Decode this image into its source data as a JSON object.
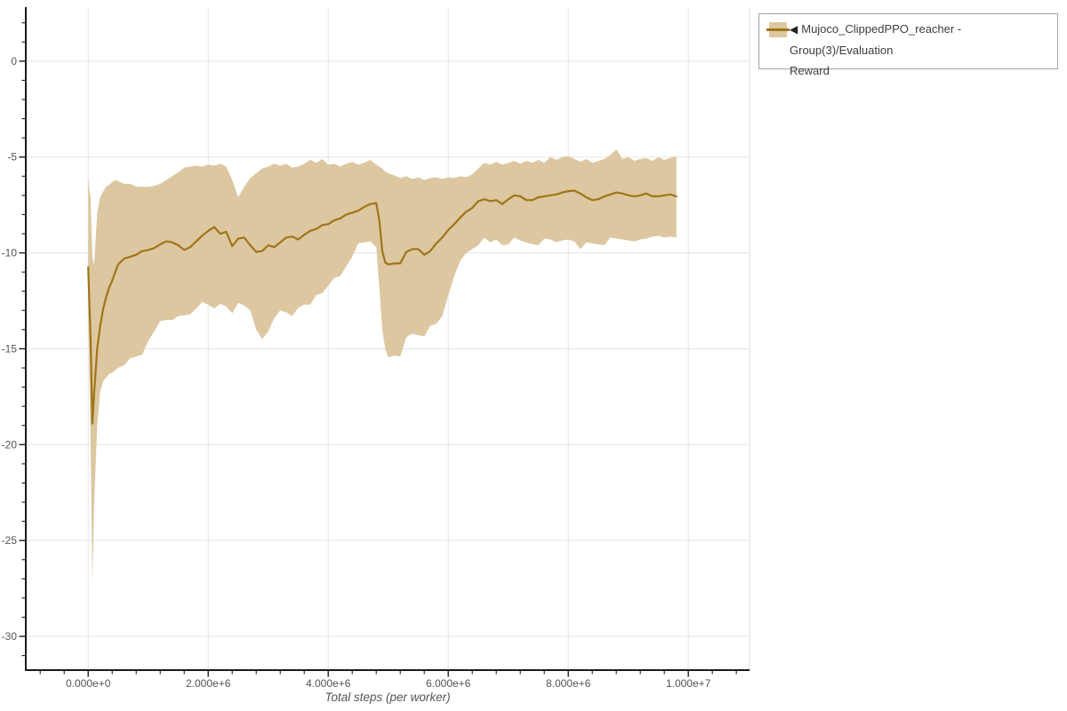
{
  "legend": {
    "items": [
      {
        "collapse_icon": "◀",
        "label": "Mujoco_ClippedPPO_reacher - Group(3)/Evaluation Reward",
        "label_line1": "Mujoco_ClippedPPO_reacher - Group(3)/Evaluation",
        "label_line2": "Reward"
      }
    ]
  },
  "axes": {
    "x": {
      "title": "Total steps (per worker)",
      "tick_values_e6": [
        0,
        2,
        4,
        6,
        8,
        10
      ],
      "tick_labels": [
        "0.000e+0",
        "2.000e+6",
        "4.000e+6",
        "6.000e+6",
        "8.000e+6",
        "1.000e+7"
      ],
      "minor_tick_start_e6": -0.8,
      "minor_tick_end_e6": 10.8,
      "minor_step_e6": 0.4,
      "lim_e6": [
        -1.04,
        11.02
      ]
    },
    "y": {
      "tick_values": [
        0,
        -5,
        -10,
        -15,
        -20,
        -25,
        -30
      ],
      "tick_labels": [
        "0",
        "-5",
        "-10",
        "-15",
        "-20",
        "-25",
        "-30"
      ],
      "minor_tick_start": 2,
      "minor_tick_end": -31,
      "minor_step": 1,
      "lim": [
        -31.76,
        2.82
      ]
    }
  },
  "colors": {
    "band": "#dcc7a0",
    "line": "#9f7519",
    "grid": "#e5e5e5",
    "frame_right": "#e0e0e0",
    "axis": "#1a1a1a",
    "tick_label": "#555555"
  },
  "chart_data": {
    "type": "line",
    "title": "",
    "xlabel": "Total steps (per worker)",
    "ylabel": "",
    "x_unit_steps": 1000000,
    "xlim_e6": [
      -1.04,
      11.02
    ],
    "ylim": [
      -31.76,
      2.82
    ],
    "grid": true,
    "legend_position": "top-right-outside",
    "series": [
      {
        "name": "Mujoco_ClippedPPO_reacher - Group(3)/Evaluation Reward",
        "x_e6": [
          0,
          0.04,
          0.07,
          0.1,
          0.15,
          0.2,
          0.25,
          0.3,
          0.35,
          0.4,
          0.45,
          0.5,
          0.6,
          0.7,
          0.8,
          0.9,
          1.0,
          1.1,
          1.2,
          1.3,
          1.4,
          1.5,
          1.6,
          1.7,
          1.8,
          1.9,
          2.0,
          2.1,
          2.2,
          2.3,
          2.4,
          2.5,
          2.6,
          2.7,
          2.8,
          2.9,
          3.0,
          3.1,
          3.2,
          3.3,
          3.4,
          3.5,
          3.6,
          3.7,
          3.8,
          3.9,
          4.0,
          4.1,
          4.2,
          4.3,
          4.4,
          4.5,
          4.6,
          4.7,
          4.8,
          4.85,
          4.9,
          4.95,
          5.0,
          5.1,
          5.2,
          5.3,
          5.4,
          5.5,
          5.6,
          5.7,
          5.8,
          5.9,
          6.0,
          6.1,
          6.2,
          6.3,
          6.4,
          6.5,
          6.6,
          6.7,
          6.8,
          6.9,
          7.0,
          7.1,
          7.2,
          7.3,
          7.4,
          7.5,
          7.6,
          7.7,
          7.8,
          7.9,
          8.0,
          8.1,
          8.2,
          8.3,
          8.4,
          8.5,
          8.6,
          8.7,
          8.8,
          8.9,
          9.0,
          9.1,
          9.2,
          9.3,
          9.4,
          9.5,
          9.6,
          9.7,
          9.8
        ],
        "mean": [
          -10.75,
          -14.5,
          -18.9,
          -17.3,
          -15.0,
          -13.8,
          -12.9,
          -12.3,
          -11.8,
          -11.45,
          -11.0,
          -10.6,
          -10.3,
          -10.2,
          -10.1,
          -9.9,
          -9.85,
          -9.75,
          -9.55,
          -9.4,
          -9.45,
          -9.6,
          -9.85,
          -9.7,
          -9.4,
          -9.1,
          -8.85,
          -8.65,
          -9.0,
          -8.9,
          -9.65,
          -9.25,
          -9.2,
          -9.6,
          -9.95,
          -9.9,
          -9.6,
          -9.7,
          -9.45,
          -9.2,
          -9.15,
          -9.3,
          -9.05,
          -8.85,
          -8.75,
          -8.55,
          -8.5,
          -8.3,
          -8.2,
          -8.0,
          -7.9,
          -7.8,
          -7.6,
          -7.45,
          -7.4,
          -8.3,
          -9.9,
          -10.5,
          -10.6,
          -10.55,
          -10.55,
          -9.95,
          -9.8,
          -9.8,
          -10.1,
          -9.9,
          -9.5,
          -9.2,
          -8.8,
          -8.5,
          -8.15,
          -7.85,
          -7.65,
          -7.3,
          -7.2,
          -7.3,
          -7.25,
          -7.45,
          -7.2,
          -7.0,
          -7.05,
          -7.25,
          -7.25,
          -7.1,
          -7.05,
          -7.0,
          -6.95,
          -6.85,
          -6.78,
          -6.75,
          -6.9,
          -7.1,
          -7.25,
          -7.2,
          -7.05,
          -6.95,
          -6.85,
          -6.9,
          -7.0,
          -7.05,
          -7.0,
          -6.9,
          -7.05,
          -7.05,
          -7.0,
          -6.95,
          -7.05
        ],
        "upper": [
          -6.1,
          -7.2,
          -10.3,
          -10.6,
          -7.9,
          -7.1,
          -6.8,
          -6.55,
          -6.45,
          -6.3,
          -6.2,
          -6.25,
          -6.4,
          -6.4,
          -6.55,
          -6.55,
          -6.55,
          -6.5,
          -6.4,
          -6.2,
          -6.0,
          -5.8,
          -5.55,
          -5.5,
          -5.45,
          -5.5,
          -5.4,
          -5.45,
          -5.35,
          -5.5,
          -6.2,
          -7.1,
          -6.55,
          -6.1,
          -5.85,
          -5.6,
          -5.5,
          -5.35,
          -5.45,
          -5.35,
          -5.55,
          -5.5,
          -5.35,
          -5.15,
          -5.3,
          -5.1,
          -5.4,
          -5.35,
          -5.5,
          -5.35,
          -5.25,
          -5.4,
          -5.3,
          -5.15,
          -5.4,
          -5.5,
          -5.6,
          -5.75,
          -5.85,
          -5.95,
          -6.1,
          -6.0,
          -6.15,
          -6.05,
          -6.2,
          -6.1,
          -6.05,
          -6.15,
          -6.05,
          -6.1,
          -6.0,
          -6.05,
          -5.9,
          -5.6,
          -5.3,
          -5.4,
          -5.25,
          -5.4,
          -5.3,
          -5.2,
          -5.35,
          -5.2,
          -5.3,
          -5.15,
          -5.3,
          -5.0,
          -5.15,
          -5.0,
          -4.95,
          -5.1,
          -5.25,
          -5.1,
          -5.3,
          -5.2,
          -5.1,
          -4.9,
          -4.6,
          -5.1,
          -5.0,
          -5.2,
          -5.1,
          -5.05,
          -5.2,
          -5.0,
          -5.15,
          -5.05,
          -4.95
        ],
        "lower": [
          -12.9,
          -20.0,
          -27.2,
          -23.0,
          -19.0,
          -17.2,
          -16.7,
          -16.5,
          -16.3,
          -16.25,
          -16.1,
          -16.0,
          -15.85,
          -15.5,
          -15.4,
          -15.3,
          -14.6,
          -14.1,
          -13.55,
          -13.5,
          -13.5,
          -13.3,
          -13.25,
          -13.2,
          -12.9,
          -12.55,
          -12.7,
          -12.9,
          -12.65,
          -12.8,
          -13.15,
          -12.6,
          -12.75,
          -13.0,
          -14.0,
          -14.5,
          -14.1,
          -13.4,
          -13.0,
          -13.1,
          -13.3,
          -12.85,
          -12.7,
          -12.7,
          -12.2,
          -12.1,
          -11.7,
          -11.3,
          -11.2,
          -10.7,
          -10.2,
          -9.5,
          -9.45,
          -9.4,
          -9.7,
          -11.8,
          -14.0,
          -15.0,
          -15.45,
          -15.35,
          -15.4,
          -14.4,
          -14.2,
          -14.3,
          -14.35,
          -13.8,
          -13.7,
          -13.3,
          -12.2,
          -11.2,
          -10.4,
          -10.0,
          -9.8,
          -9.6,
          -9.2,
          -9.45,
          -9.3,
          -9.6,
          -9.55,
          -9.2,
          -9.35,
          -9.45,
          -9.55,
          -9.6,
          -9.25,
          -9.3,
          -9.45,
          -9.35,
          -9.3,
          -9.4,
          -9.8,
          -9.45,
          -9.5,
          -9.55,
          -9.6,
          -9.2,
          -9.25,
          -9.3,
          -9.35,
          -9.4,
          -9.3,
          -9.25,
          -9.15,
          -9.1,
          -9.2,
          -9.15,
          -9.2
        ]
      }
    ]
  }
}
